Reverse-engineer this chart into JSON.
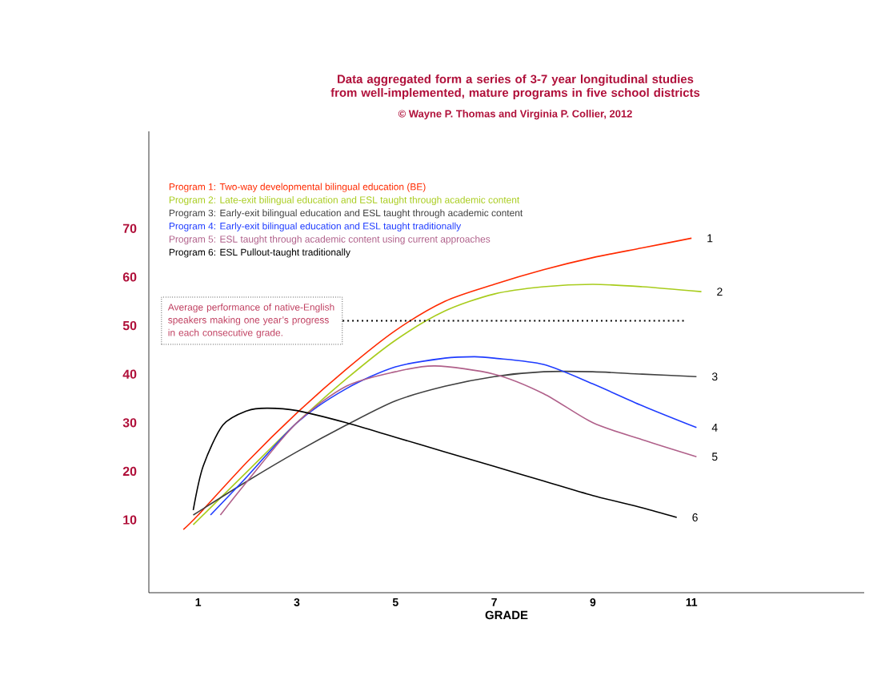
{
  "chart_data": {
    "type": "line",
    "title": "Data aggregated form a series of 3-7 year longitudinal studies from well-implemented, mature programs in five school districts",
    "subtitle": "© Wayne P. Thomas and Virginia P. Collier, 2012",
    "xlabel": "GRADE",
    "xlim": [
      0,
      14.5
    ],
    "xticks": [
      1,
      3,
      5,
      7,
      9,
      11
    ],
    "ylim": [
      -5,
      90
    ],
    "yticks": [
      10,
      20,
      30,
      40,
      50,
      60,
      70
    ],
    "grid": false,
    "marker": "none",
    "line_style": "solid",
    "series": [
      {
        "name": "1",
        "color": "#ff2a00",
        "x": [
          0.7,
          1,
          2,
          3,
          4,
          5,
          6,
          7,
          8,
          9,
          10,
          11
        ],
        "values": [
          8,
          11,
          22,
          32,
          41,
          49,
          55,
          58.5,
          61.5,
          64,
          66,
          68
        ]
      },
      {
        "name": "2",
        "color": "#a8cc1c",
        "x": [
          0.9,
          2,
          3,
          4,
          5,
          6,
          7,
          8,
          9,
          10,
          11.2
        ],
        "values": [
          9,
          20,
          30,
          39,
          47,
          53,
          56.5,
          58,
          58.5,
          58,
          57
        ]
      },
      {
        "name": "3",
        "color": "#404040",
        "x": [
          0.9,
          2,
          3,
          4,
          5,
          6,
          7,
          8,
          9,
          10,
          11.1
        ],
        "values": [
          11,
          18,
          24,
          29.5,
          34.5,
          37.5,
          39.5,
          40.5,
          40.5,
          40,
          39.5
        ]
      },
      {
        "name": "4",
        "color": "#1f3cff",
        "x": [
          1.25,
          2,
          3,
          4,
          5,
          6,
          6.6,
          7,
          8,
          9,
          10,
          11.1
        ],
        "values": [
          11,
          19,
          30,
          37,
          41.5,
          43.3,
          43.6,
          43.3,
          42,
          38,
          33.5,
          29
        ]
      },
      {
        "name": "5",
        "color": "#b0608a",
        "x": [
          1.45,
          2,
          3,
          4,
          5,
          5.8,
          7,
          8,
          9,
          10,
          11.1
        ],
        "values": [
          11,
          18,
          30,
          37.5,
          40.5,
          41.7,
          40,
          36,
          30,
          26.5,
          23
        ]
      },
      {
        "name": "6",
        "color": "#000000",
        "x": [
          0.9,
          1.1,
          1.5,
          2,
          2.4,
          3,
          4,
          5,
          6,
          7,
          8,
          9,
          10,
          10.7
        ],
        "values": [
          12,
          21,
          29.5,
          32.5,
          33,
          32.5,
          30,
          27,
          24,
          21,
          18,
          15,
          12.5,
          10.5
        ]
      }
    ],
    "ref_lines": [
      {
        "axis": "y",
        "value": 51,
        "label": "Average performance of native-English speakers making one year’s progress in each consecutive grade.",
        "color": "#000000",
        "line_style": "dotted"
      }
    ],
    "annotations": [
      "Program 1: Two-way developmental bilingual education (BE)",
      "Program 2: Late-exit bilingual education and ESL taught through academic content",
      "Program 3: Early-exit bilingual education and ESL taught through academic content",
      "Program 4: Early-exit bilingual education and ESL taught traditionally",
      "Program 5: ESL taught through academic content using current approaches",
      "Program 6: ESL Pullout-taught traditionally"
    ]
  }
}
